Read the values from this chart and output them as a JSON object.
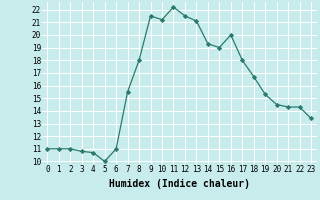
{
  "xlabel": "Humidex (Indice chaleur)",
  "x": [
    0,
    1,
    2,
    3,
    4,
    5,
    6,
    7,
    8,
    9,
    10,
    11,
    12,
    13,
    14,
    15,
    16,
    17,
    18,
    19,
    20,
    21,
    22,
    23
  ],
  "y": [
    11,
    11,
    11,
    10.8,
    10.7,
    10,
    11,
    15.5,
    18,
    21.5,
    21.2,
    22.2,
    21.5,
    21.1,
    19.3,
    19,
    20,
    18,
    16.7,
    15.3,
    14.5,
    14.3,
    14.3,
    13.4
  ],
  "ylim": [
    9.8,
    22.6
  ],
  "xlim": [
    -0.5,
    23.5
  ],
  "yticks": [
    10,
    11,
    12,
    13,
    14,
    15,
    16,
    17,
    18,
    19,
    20,
    21,
    22
  ],
  "xticks": [
    0,
    1,
    2,
    3,
    4,
    5,
    6,
    7,
    8,
    9,
    10,
    11,
    12,
    13,
    14,
    15,
    16,
    17,
    18,
    19,
    20,
    21,
    22,
    23
  ],
  "xtick_labels": [
    "0",
    "1",
    "2",
    "3",
    "4",
    "5",
    "6",
    "7",
    "8",
    "9",
    "10",
    "11",
    "12",
    "13",
    "14",
    "15",
    "16",
    "17",
    "18",
    "19",
    "20",
    "21",
    "22",
    "23"
  ],
  "line_color": "#2a7a6a",
  "marker_color": "#2a7a6a",
  "bg_color": "#c8ecec",
  "grid_color": "#ffffff",
  "xlabel_fontsize": 7,
  "tick_fontsize": 5.5
}
